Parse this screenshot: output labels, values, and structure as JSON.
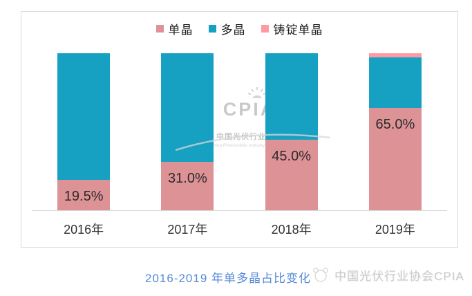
{
  "chart_data": {
    "type": "bar",
    "stacked": true,
    "orientation": "vertical",
    "title": "2016-2019 年单多晶占比变化",
    "categories": [
      "2016年",
      "2017年",
      "2018年",
      "2019年"
    ],
    "series": [
      {
        "name": "单晶",
        "color": "#DD9296",
        "values": [
          19.5,
          31.0,
          45.0,
          65.0
        ],
        "data_labels": [
          "19.5%",
          "31.0%",
          "45.0%",
          "65.0%"
        ]
      },
      {
        "name": "多晶",
        "color": "#16A0C2",
        "values": [
          80.5,
          69.0,
          55.0,
          32.5
        ],
        "data_labels": [
          "",
          "",
          "",
          ""
        ]
      },
      {
        "name": "铸锭单晶",
        "color": "#FF9AA4",
        "values": [
          0,
          0,
          0,
          2.5
        ],
        "data_labels": [
          "",
          "",
          "",
          ""
        ]
      }
    ],
    "ylim": [
      0,
      100
    ],
    "unit": "%",
    "grid": false,
    "y_axis_visible": false,
    "legend_position": "top"
  },
  "watermark": {
    "logo": "CPIA",
    "org_cn": "中国光伏行业协会",
    "org_en": "China Photovoltaic Industry Association"
  },
  "footer": {
    "caption": "2016-2019 年单多晶占比变化",
    "source": "中国光伏行业协会CPIA"
  },
  "colors": {
    "frame_border": "#D9D9D9",
    "axis_line": "#D8D8D8",
    "data_label_text": "#2B2B2B",
    "caption_blue": "#5489D6",
    "watermark_gray": "#C9C9C9",
    "source_gray": "#C9CBCE"
  }
}
